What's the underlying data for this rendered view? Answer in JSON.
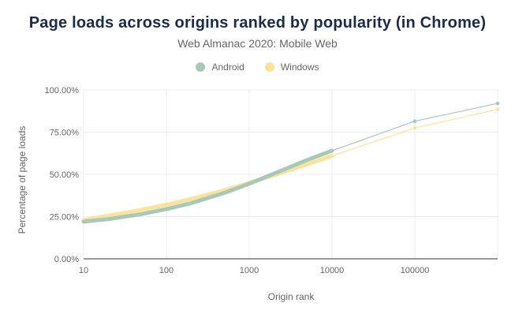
{
  "title": "Page loads across origins ranked by popularity (in Chrome)",
  "subtitle": "Web Almanac 2020: Mobile Web",
  "colors": {
    "Android": "#a8c9b8",
    "Windows": "#fbe39a",
    "grid": "#ececec",
    "axis": "#333333"
  },
  "chart_data": {
    "type": "line",
    "title": "Page loads across origins ranked by popularity (in Chrome)",
    "subtitle": "Web Almanac 2020: Mobile Web",
    "xlabel": "Origin rank",
    "ylabel": "Percentage of page loads",
    "xscale": "log",
    "xlim": [
      10,
      1000000
    ],
    "ylim": [
      0,
      1
    ],
    "xticks": [
      "10",
      "100",
      "1000",
      "10000",
      "100000"
    ],
    "yticks": [
      "0.00%",
      "25.00%",
      "50.00%",
      "75.00%",
      "100.00%"
    ],
    "legend": "top-center",
    "grid": true,
    "series": [
      {
        "name": "Android",
        "x": [
          10,
          20,
          50,
          100,
          200,
          500,
          1000,
          2000,
          5000,
          10000,
          100000,
          1000000
        ],
        "y": [
          0.22,
          0.235,
          0.265,
          0.295,
          0.33,
          0.39,
          0.445,
          0.505,
          0.585,
          0.64,
          0.815,
          0.92
        ]
      },
      {
        "name": "Windows",
        "x": [
          10,
          20,
          50,
          100,
          200,
          500,
          1000,
          2000,
          5000,
          10000,
          100000,
          1000000
        ],
        "y": [
          0.23,
          0.255,
          0.29,
          0.32,
          0.355,
          0.405,
          0.45,
          0.495,
          0.56,
          0.61,
          0.775,
          0.885
        ]
      }
    ]
  }
}
